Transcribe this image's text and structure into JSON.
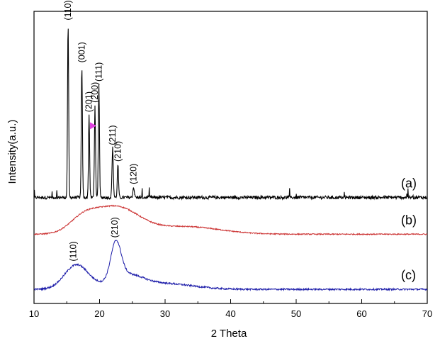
{
  "chart_data": {
    "type": "line",
    "title": "",
    "xlabel": "2 Theta",
    "ylabel": "Intensity(a.u.)",
    "xlim": [
      10,
      70
    ],
    "xticks": [
      10,
      20,
      30,
      40,
      50,
      60,
      70
    ],
    "y_ticks_shown": false,
    "grid": false,
    "legend": "none",
    "series": [
      {
        "label": "(a)",
        "color": "#000000",
        "baseline": 0.5,
        "noise": 0.035,
        "halo": [],
        "peaks": [
          {
            "x": 15.2,
            "height": 3.7,
            "width": 0.12,
            "label": "(110)"
          },
          {
            "x": 17.3,
            "height": 2.8,
            "width": 0.12,
            "label": "(001)"
          },
          {
            "x": 18.4,
            "height": 1.75,
            "width": 0.12,
            "label": "(201)"
          },
          {
            "x": 19.3,
            "height": 1.95,
            "width": 0.12,
            "label": "(200)",
            "marker": true
          },
          {
            "x": 19.9,
            "height": 2.4,
            "width": 0.12,
            "label": "(111)"
          },
          {
            "x": 22.0,
            "height": 1.05,
            "width": 0.14,
            "label": "(211)"
          },
          {
            "x": 22.8,
            "height": 0.7,
            "width": 0.13,
            "label": "(210)"
          },
          {
            "x": 25.2,
            "height": 0.22,
            "width": 0.15,
            "label": "(120)"
          }
        ]
      },
      {
        "label": "(b)",
        "color": "#cc3333",
        "baseline": -0.28,
        "noise": 0.012,
        "halo": [
          {
            "x": 17.5,
            "height": 0.28,
            "width": 3.0
          },
          {
            "x": 22.5,
            "height": 0.56,
            "width": 4.8
          },
          {
            "x": 33.0,
            "height": 0.16,
            "width": 7.5
          }
        ],
        "peaks": []
      },
      {
        "label": "(c)",
        "color": "#1a1aa8",
        "baseline": -1.45,
        "noise": 0.018,
        "halo": [
          {
            "x": 16.5,
            "height": 0.52,
            "width": 2.6
          },
          {
            "x": 22.5,
            "height": 0.78,
            "width": 1.1
          },
          {
            "x": 24.0,
            "height": 0.28,
            "width": 3.5
          },
          {
            "x": 30.0,
            "height": 0.12,
            "width": 6.0
          }
        ],
        "peaks": [],
        "annotations": [
          {
            "x": 16.0,
            "label": "(110)"
          },
          {
            "x": 22.3,
            "label": "(210)"
          }
        ]
      }
    ],
    "marker_color": "#e040e0"
  }
}
